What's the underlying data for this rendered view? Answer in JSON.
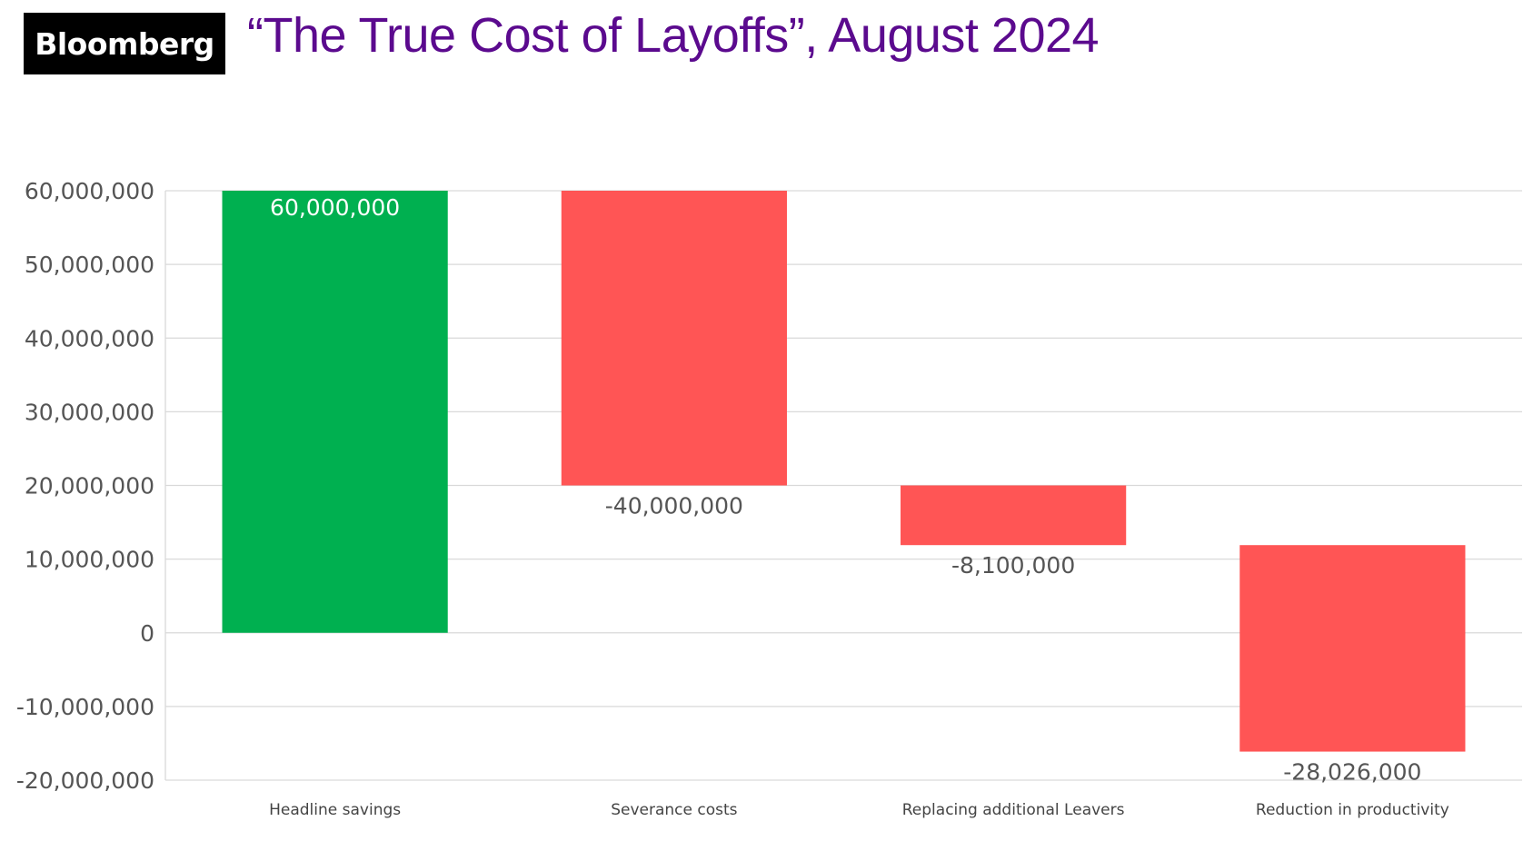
{
  "brand": {
    "logo_text": "Bloomberg"
  },
  "title": "“The True Cost of Layoffs”, August 2024",
  "colors": {
    "title": "#5b0a8e",
    "increase": "#00b050",
    "decrease": "#ff5555",
    "gridline": "#d9d9d9",
    "label_inside": "#ffffff",
    "label_outside": "#555555"
  },
  "chart_data": {
    "type": "bar",
    "subtype": "waterfall",
    "categories": [
      "Headline savings",
      "Severance costs",
      "Replacing additional Leavers",
      "Reduction in productivity"
    ],
    "values": [
      60000000,
      -40000000,
      -8100000,
      -28026000
    ],
    "data_labels": [
      "60,000,000",
      "-40,000,000",
      "-8,100,000",
      "-28,026,000"
    ],
    "ylim": [
      -20000000,
      60000000
    ],
    "y_ticks": [
      60000000,
      50000000,
      40000000,
      30000000,
      20000000,
      10000000,
      0,
      -10000000,
      -20000000
    ],
    "y_tick_labels": [
      "60,000,000",
      "50,000,000",
      "40,000,000",
      "30,000,000",
      "20,000,000",
      "10,000,000",
      "0",
      "-10,000,000",
      "-20,000,000"
    ],
    "grid": true,
    "legend": "none",
    "xlabel": "",
    "ylabel": ""
  }
}
